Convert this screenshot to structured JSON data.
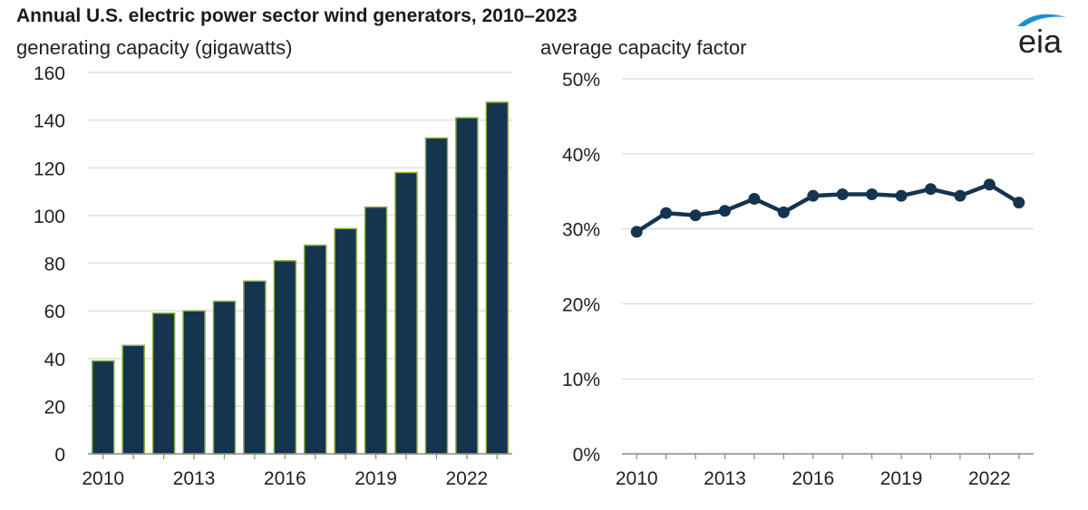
{
  "title": "Annual U.S. electric power sector wind generators, 2010–2023",
  "logo": {
    "text": "eia",
    "color": "#1a8fd6"
  },
  "colors": {
    "bar": "#14344f",
    "bar_outline": "#8cb23a",
    "line": "#14344f",
    "grid": "#d9d9d9",
    "axis": "#888888"
  },
  "chart_data": [
    {
      "type": "bar",
      "subtitle": "generating capacity (gigawatts)",
      "x": [
        2010,
        2011,
        2012,
        2013,
        2014,
        2015,
        2016,
        2017,
        2018,
        2019,
        2020,
        2021,
        2022,
        2023
      ],
      "values": [
        39,
        45.5,
        59,
        60,
        64,
        72.5,
        81,
        87.5,
        94.5,
        103.5,
        118,
        132.5,
        141,
        147.5
      ],
      "ylim": [
        0,
        160
      ],
      "yticks": [
        0,
        20,
        40,
        60,
        80,
        100,
        120,
        140,
        160
      ],
      "ytick_labels": [
        "0",
        "20",
        "40",
        "60",
        "80",
        "100",
        "120",
        "140",
        "160"
      ],
      "xtick_labels": [
        "2010",
        "2013",
        "2016",
        "2019",
        "2022"
      ],
      "grid": true
    },
    {
      "type": "line",
      "subtitle": "average capacity factor",
      "x": [
        2010,
        2011,
        2012,
        2013,
        2014,
        2015,
        2016,
        2017,
        2018,
        2019,
        2020,
        2021,
        2022,
        2023
      ],
      "values": [
        29.6,
        32.1,
        31.8,
        32.4,
        34.0,
        32.2,
        34.4,
        34.6,
        34.6,
        34.4,
        35.3,
        34.4,
        35.9,
        33.5
      ],
      "ylim": [
        0,
        50
      ],
      "yticks": [
        0,
        10,
        20,
        30,
        40,
        50
      ],
      "ytick_labels": [
        "0%",
        "10%",
        "20%",
        "30%",
        "40%",
        "50%"
      ],
      "xtick_labels": [
        "2010",
        "2013",
        "2016",
        "2019",
        "2022"
      ],
      "grid": true
    }
  ]
}
